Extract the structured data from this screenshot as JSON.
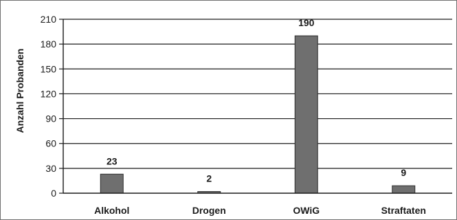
{
  "chart_data": {
    "type": "bar",
    "title": "",
    "xlabel": "",
    "ylabel": "Anzahl Probanden",
    "categories": [
      "Alkohol",
      "Drogen",
      "OWiG",
      "Straftaten"
    ],
    "values": [
      23,
      2,
      190,
      9
    ],
    "data_labels": [
      "23",
      "2",
      "190",
      "9"
    ],
    "ylim": [
      0,
      210
    ],
    "yticks": [
      0,
      30,
      60,
      90,
      120,
      150,
      180,
      210
    ],
    "grid": true,
    "legend": "none",
    "colors": {
      "bar": "#6f6f6f",
      "bar_edge": "#2b2b2b",
      "grid": "#1a1a1a",
      "axis": "#1a1a1a"
    }
  }
}
